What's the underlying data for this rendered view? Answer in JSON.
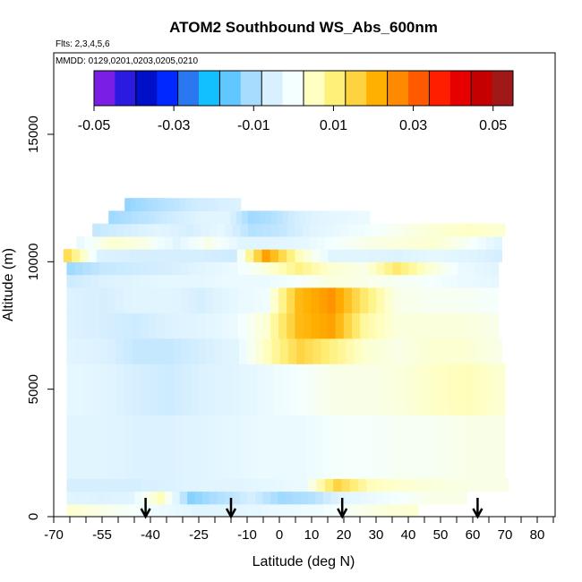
{
  "chart_data": {
    "type": "heatmap",
    "title": "ATOM2 Southbound WS_Abs_600nm",
    "subtitle_flights": "Flts: 2,3,4,5,6",
    "subtitle_dates": "MMDD: 0129,0201,0203,0205,0210",
    "xlabel": "Latitude (deg N)",
    "ylabel": "Altitude (m)",
    "xlim": [
      -70,
      85
    ],
    "ylim": [
      0,
      17500
    ],
    "xticks_minor_step": 5,
    "xtick_labels": [
      -70,
      -55,
      -40,
      -25,
      -10,
      0,
      10,
      20,
      30,
      40,
      50,
      60,
      70,
      80
    ],
    "ytick_labels": [
      0,
      5000,
      10000,
      15000
    ],
    "colorbar": {
      "min": -0.05,
      "max": 0.055,
      "tick_labels": [
        "-0.05",
        "-0.03",
        "-0.01",
        "0.01",
        "0.03",
        "0.05"
      ],
      "colors": [
        "#7a1ee6",
        "#2b1ae0",
        "#0010c8",
        "#0028ff",
        "#2a78f0",
        "#12c0ff",
        "#60c8ff",
        "#a8dcff",
        "#d8f0ff",
        "#f4ffff",
        "#ffffc4",
        "#fff07a",
        "#ffd240",
        "#ffb000",
        "#ff8a00",
        "#ff5a00",
        "#ff1e00",
        "#e60000",
        "#c40000",
        "#a01818"
      ]
    },
    "arrow_latitudes": [
      -41.5,
      -15,
      19.5,
      61.5
    ],
    "layers": [
      {
        "alt_bottom": 0,
        "alt_top": 500,
        "lat_start": -66,
        "lat_end": 43,
        "values": [
          0.004,
          0.002,
          0.0,
          -0.002,
          -0.004,
          -0.004,
          -0.003,
          -0.002,
          -0.001,
          0.001,
          0.003,
          0.004
        ]
      },
      {
        "alt_bottom": 500,
        "alt_top": 1000,
        "lat_start": -66,
        "lat_end": 58,
        "values": [
          -0.004,
          -0.005,
          -0.004,
          0.006,
          -0.014,
          -0.01,
          -0.006,
          -0.012,
          -0.01,
          -0.004,
          -0.002,
          0.0,
          0.002,
          0.002
        ]
      },
      {
        "alt_bottom": 1000,
        "alt_top": 1500,
        "lat_start": -66,
        "lat_end": 71,
        "values": [
          -0.006,
          -0.006,
          -0.006,
          -0.005,
          -0.004,
          -0.004,
          -0.003,
          -0.002,
          0.016,
          0.006,
          0.004,
          0.003,
          0.002,
          0.002
        ]
      },
      {
        "alt_bottom": 1500,
        "alt_top": 4000,
        "lat_start": -66,
        "lat_end": 70,
        "values": [
          -0.004,
          -0.004,
          -0.005,
          -0.005,
          -0.004,
          -0.003,
          -0.002,
          -0.002,
          0.0,
          0.0,
          0.001,
          0.001,
          0.002,
          0.002
        ]
      },
      {
        "alt_bottom": 4000,
        "alt_top": 6000,
        "lat_start": -66,
        "lat_end": 70,
        "values": [
          -0.003,
          -0.004,
          -0.006,
          -0.007,
          -0.005,
          -0.004,
          -0.002,
          0.0,
          0.002,
          0.002,
          0.003,
          0.005,
          0.006,
          0.004
        ]
      },
      {
        "alt_bottom": 6000,
        "alt_top": 7000,
        "lat_start": -66,
        "lat_end": 69,
        "values": [
          -0.004,
          -0.005,
          -0.008,
          -0.008,
          -0.006,
          -0.004,
          0.006,
          0.016,
          0.01,
          0.004,
          0.002,
          0.004,
          0.004,
          0.002
        ]
      },
      {
        "alt_bottom": 7000,
        "alt_top": 8000,
        "lat_start": -66,
        "lat_end": 68,
        "values": [
          -0.005,
          -0.006,
          -0.007,
          -0.005,
          -0.004,
          -0.002,
          0.004,
          0.02,
          0.024,
          0.008,
          0.003,
          0.003,
          0.003,
          0.002
        ]
      },
      {
        "alt_bottom": 8000,
        "alt_top": 9000,
        "lat_start": -66,
        "lat_end": 68,
        "values": [
          -0.005,
          -0.006,
          -0.004,
          -0.004,
          -0.006,
          -0.003,
          -0.001,
          0.02,
          0.026,
          0.012,
          0.002,
          0.001,
          0.001,
          0.0
        ]
      },
      {
        "alt_bottom": 9000,
        "alt_top": 9500,
        "lat_start": -66,
        "lat_end": 68,
        "values": [
          -0.007,
          -0.005,
          -0.004,
          -0.003,
          -0.003,
          -0.002,
          -0.002,
          0.0,
          0.003,
          0.002,
          0.001,
          0.0,
          -0.002,
          -0.003
        ]
      },
      {
        "alt_bottom": 9500,
        "alt_top": 10000,
        "lat_start": -66,
        "lat_end": 68,
        "values": [
          -0.012,
          -0.008,
          -0.007,
          -0.006,
          -0.004,
          -0.002,
          0.003,
          0.01,
          0.004,
          0.002,
          0.012,
          0.004,
          -0.002,
          -0.004
        ]
      },
      {
        "alt_bottom": 10000,
        "alt_top": 10500,
        "lat_start": -67,
        "lat_end": 69,
        "values": [
          0.014,
          -0.005,
          -0.006,
          -0.006,
          -0.006,
          -0.007,
          0.024,
          0.006,
          -0.004,
          -0.004,
          -0.005,
          -0.003,
          -0.004,
          -0.006
        ]
      },
      {
        "alt_bottom": 10500,
        "alt_top": 11000,
        "lat_start": -63,
        "lat_end": 69,
        "values": [
          -0.002,
          0.004,
          0.002,
          -0.004,
          0.002,
          -0.004,
          -0.004,
          -0.003,
          0.0,
          0.002,
          0.003,
          0.004,
          0.001,
          -0.004
        ]
      },
      {
        "alt_bottom": 11000,
        "alt_top": 11500,
        "lat_start": -58,
        "lat_end": 70,
        "values": [
          -0.008,
          -0.006,
          -0.004,
          -0.006,
          -0.003,
          -0.01,
          -0.008,
          -0.004,
          -0.002,
          0.0,
          0.002,
          0.004,
          0.005,
          0.004
        ]
      },
      {
        "alt_bottom": 11500,
        "alt_top": 12000,
        "lat_start": -53,
        "lat_end": 28,
        "values": [
          -0.012,
          -0.01,
          -0.008,
          -0.006,
          -0.004,
          -0.004,
          -0.012,
          -0.01,
          -0.006,
          -0.004,
          -0.003,
          -0.002
        ]
      },
      {
        "alt_bottom": 12000,
        "alt_top": 12500,
        "lat_start": -48,
        "lat_end": -12,
        "values": [
          -0.013,
          -0.011,
          -0.009,
          -0.007,
          -0.006,
          -0.005
        ]
      }
    ]
  }
}
